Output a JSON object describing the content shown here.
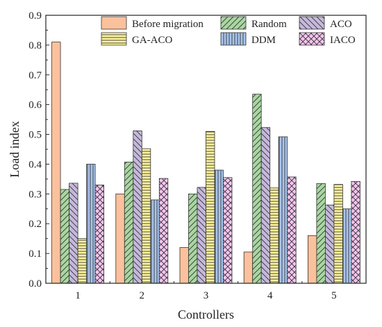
{
  "chart_data": {
    "type": "bar",
    "xlabel": "Controllers",
    "ylabel": "Load index",
    "categories": [
      "1",
      "2",
      "3",
      "4",
      "5"
    ],
    "ylim": [
      0,
      0.9
    ],
    "yticks": [
      "0.0",
      "0.1",
      "0.2",
      "0.3",
      "0.4",
      "0.5",
      "0.6",
      "0.7",
      "0.8",
      "0.9"
    ],
    "legend_position": "top-right",
    "grid": false,
    "series": [
      {
        "name": "Before migration",
        "values": [
          0.81,
          0.3,
          0.12,
          0.105,
          0.16
        ],
        "color": "#fbc19d",
        "pattern": "none"
      },
      {
        "name": "Random",
        "values": [
          0.315,
          0.407,
          0.3,
          0.635,
          0.335
        ],
        "color": "#a8d7a0",
        "pattern": "diagonal-up"
      },
      {
        "name": "ACO",
        "values": [
          0.336,
          0.512,
          0.322,
          0.523,
          0.263
        ],
        "color": "#c5b8dc",
        "pattern": "diagonal-down"
      },
      {
        "name": "GA-ACO",
        "values": [
          0.15,
          0.452,
          0.51,
          0.32,
          0.332
        ],
        "color": "#fff59e",
        "pattern": "horizontal"
      },
      {
        "name": "DDM",
        "values": [
          0.4,
          0.28,
          0.38,
          0.492,
          0.25
        ],
        "color": "#a9c5ee",
        "pattern": "vertical"
      },
      {
        "name": "IACO",
        "values": [
          0.33,
          0.352,
          0.355,
          0.357,
          0.342
        ],
        "color": "#f6c4ef",
        "pattern": "crosshatch"
      }
    ]
  }
}
